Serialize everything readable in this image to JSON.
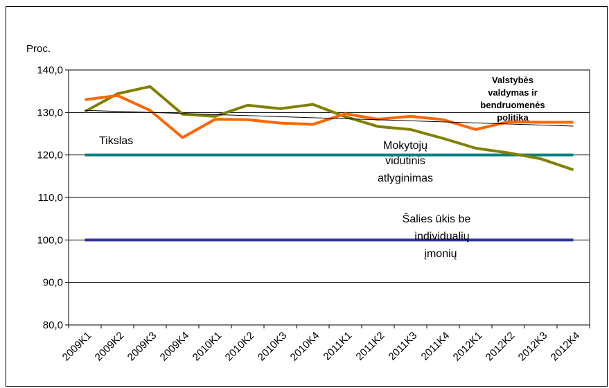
{
  "chart_data": {
    "type": "line",
    "ylabel": "Proc.",
    "ylim": [
      80,
      140
    ],
    "yticks": [
      "80,0",
      "90,0",
      "100,0",
      "110,0",
      "120,0",
      "130,0",
      "140,0"
    ],
    "ytick_values": [
      80,
      90,
      100,
      110,
      120,
      130,
      140
    ],
    "categories": [
      "2009K1",
      "2009K2",
      "2009K3",
      "2009K4",
      "2010K1",
      "2010K2",
      "2010K3",
      "2010K4",
      "2011K1",
      "2011K2",
      "2011K3",
      "2011K4",
      "2012K1",
      "2012K2",
      "2012K3",
      "2012K4"
    ],
    "grid": "horizontal",
    "series": [
      {
        "name": "Valstybės valdymas ir bendruomenės politika",
        "color": "#808000",
        "values": [
          130.2,
          134.4,
          136.1,
          129.6,
          129.1,
          131.7,
          130.9,
          131.9,
          129.0,
          126.7,
          126.0,
          123.9,
          121.6,
          120.5,
          119.1,
          116.5
        ]
      },
      {
        "name": "Mokytojų vidutinis atlyginimas",
        "color": "#ff6600",
        "values": [
          133.0,
          134.0,
          130.5,
          124.1,
          128.4,
          128.3,
          127.5,
          127.2,
          129.7,
          128.4,
          129.1,
          128.3,
          126.0,
          127.8,
          127.7,
          127.7
        ]
      },
      {
        "name": "Tikslas",
        "color": "#008080",
        "values": [
          120,
          120,
          120,
          120,
          120,
          120,
          120,
          120,
          120,
          120,
          120,
          120,
          120,
          120,
          120,
          120
        ]
      },
      {
        "name": "Šalies ūkis be individualių įmonių",
        "color": "#333399",
        "values": [
          100,
          100,
          100,
          100,
          100,
          100,
          100,
          100,
          100,
          100,
          100,
          100,
          100,
          100,
          100,
          100
        ]
      }
    ],
    "trendline": {
      "color": "#000000",
      "values": [
        130.5,
        126.8
      ]
    },
    "annotations": {
      "valstybes_lines": [
        "Valstybės",
        "valdymas ir",
        "bendruomenės",
        "politika"
      ],
      "tikslas": "Tikslas",
      "mokytoju_lines": [
        "Mokytojų",
        "vidutinis",
        "atlyginimas"
      ],
      "salies_lines": [
        "Šalies ūkis be",
        "individualių",
        "įmonių"
      ]
    }
  }
}
